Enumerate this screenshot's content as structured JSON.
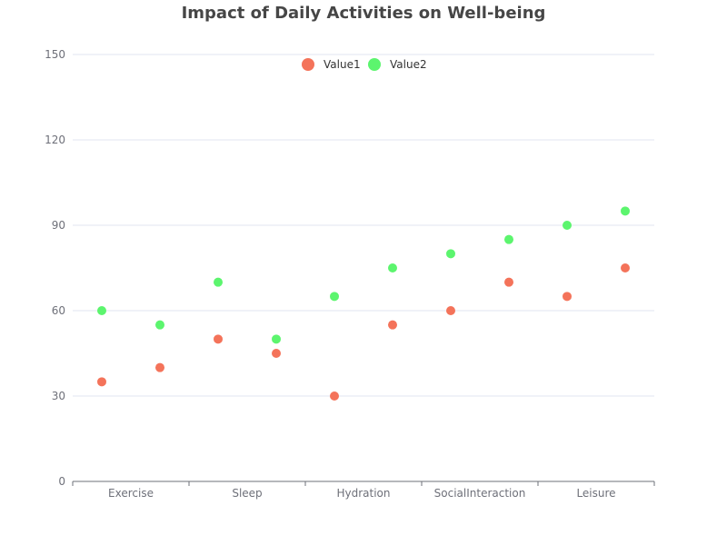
{
  "chart_data": {
    "type": "scatter",
    "title": "Impact of Daily Activities on Well-being",
    "xlabel": "",
    "ylabel": "",
    "categories": [
      "Exercise",
      "",
      "Sleep",
      "",
      "Hydration",
      "",
      "SocialInteraction",
      "",
      "Leisure",
      ""
    ],
    "ylim": [
      0,
      150
    ],
    "yticks": [
      0,
      30,
      60,
      90,
      120,
      150
    ],
    "grid": true,
    "legend_position": "top-center",
    "series": [
      {
        "name": "Value1",
        "color": "#f4735a",
        "values": [
          35,
          40,
          50,
          45,
          30,
          55,
          60,
          70,
          65,
          75
        ]
      },
      {
        "name": "Value2",
        "color": "#5cf56e",
        "values": [
          60,
          55,
          70,
          50,
          65,
          75,
          80,
          85,
          90,
          95
        ]
      }
    ]
  }
}
